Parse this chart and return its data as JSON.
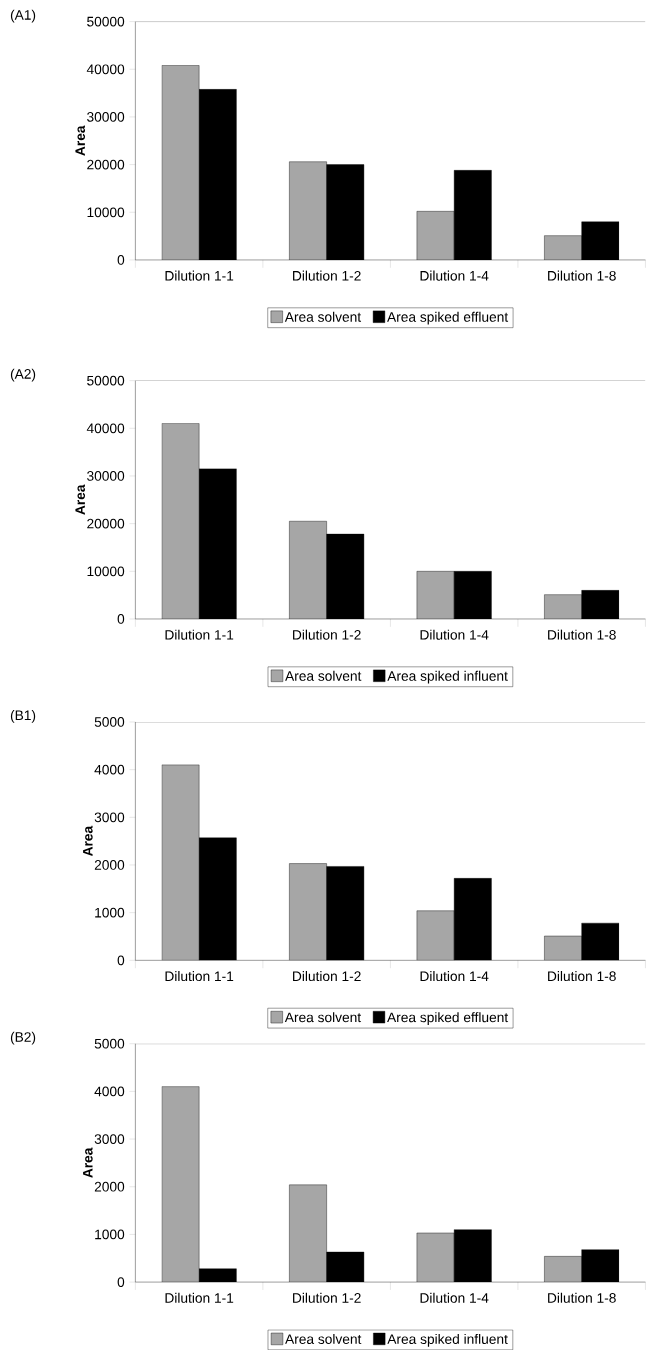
{
  "chart_data": [
    {
      "type": "bar",
      "title": "(A1)",
      "ylabel": "Area",
      "categories": [
        "Dilution 1-1",
        "Dilution 1-2",
        "Dilution 1-4",
        "Dilution 1-8"
      ],
      "series": [
        {
          "name": "Area solvent",
          "color": "#a6a6a6",
          "values": [
            40800,
            20600,
            10200,
            5100
          ]
        },
        {
          "name": "Area spiked effluent",
          "color": "#000000",
          "values": [
            35800,
            20000,
            18800,
            8000
          ]
        }
      ],
      "ylim": [
        0,
        50000
      ],
      "yticks": [
        0,
        10000,
        20000,
        30000,
        40000,
        50000
      ],
      "grid": false,
      "legend": "bottom"
    },
    {
      "type": "bar",
      "title": "(A2)",
      "ylabel": "Area",
      "categories": [
        "Dilution 1-1",
        "Dilution 1-2",
        "Dilution 1-4",
        "Dilution 1-8"
      ],
      "series": [
        {
          "name": "Area solvent",
          "color": "#a6a6a6",
          "values": [
            41000,
            20500,
            10000,
            5100
          ]
        },
        {
          "name": "Area spiked influent",
          "color": "#000000",
          "values": [
            31500,
            17800,
            10000,
            6000
          ]
        }
      ],
      "ylim": [
        0,
        50000
      ],
      "yticks": [
        0,
        10000,
        20000,
        30000,
        40000,
        50000
      ],
      "grid": false,
      "legend": "bottom"
    },
    {
      "type": "bar",
      "title": "(B1)",
      "ylabel": "Area",
      "categories": [
        "Dilution 1-1",
        "Dilution 1-2",
        "Dilution 1-4",
        "Dilution 1-8"
      ],
      "series": [
        {
          "name": "Area solvent",
          "color": "#a6a6a6",
          "values": [
            4100,
            2030,
            1040,
            510
          ]
        },
        {
          "name": "Area spiked effluent",
          "color": "#000000",
          "values": [
            2570,
            1970,
            1720,
            780
          ]
        }
      ],
      "ylim": [
        0,
        5000
      ],
      "yticks": [
        0,
        1000,
        2000,
        3000,
        4000,
        5000
      ],
      "grid": false,
      "legend": "bottom"
    },
    {
      "type": "bar",
      "title": "(B2)",
      "ylabel": "Area",
      "categories": [
        "Dilution 1-1",
        "Dilution 1-2",
        "Dilution 1-4",
        "Dilution 1-8"
      ],
      "series": [
        {
          "name": "Area solvent",
          "color": "#a6a6a6",
          "values": [
            4100,
            2040,
            1030,
            540
          ]
        },
        {
          "name": "Area spiked influent",
          "color": "#000000",
          "values": [
            280,
            630,
            1100,
            680
          ]
        }
      ],
      "ylim": [
        0,
        5000
      ],
      "yticks": [
        0,
        1000,
        2000,
        3000,
        4000,
        5000
      ],
      "grid": false,
      "legend": "bottom"
    }
  ]
}
